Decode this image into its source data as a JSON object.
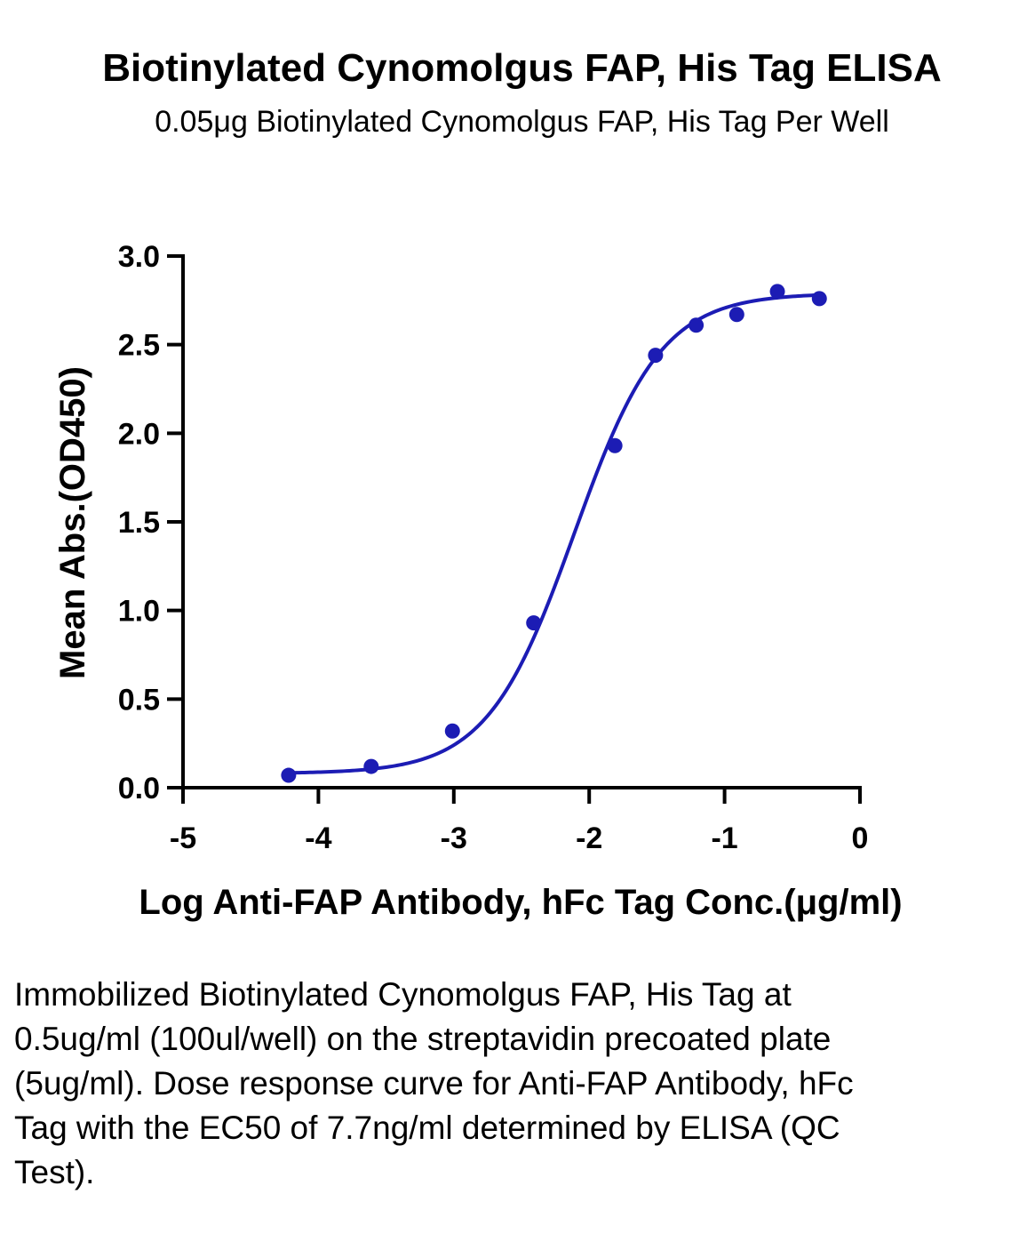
{
  "title": "Biotinylated Cynomolgus FAP, His Tag ELISA",
  "subtitle": "0.05μg Biotinylated Cynomolgus FAP, His Tag Per Well",
  "caption": "Immobilized Biotinylated Cynomolgus FAP, His Tag at 0.5ug/ml (100ul/well) on the streptavidin precoated plate (5ug/ml). Dose response curve for Anti-FAP Antibody, hFc Tag with the EC50 of 7.7ng/ml determined by ELISA (QC Test).",
  "chart_data": {
    "type": "scatter",
    "title": "Biotinylated Cynomolgus FAP, His Tag ELISA",
    "xlabel": "Log Anti-FAP Antibody, hFc Tag Conc.(μg/ml)",
    "ylabel": "Mean Abs.(OD450)",
    "xlim": [
      -5,
      0
    ],
    "ylim": [
      0,
      3.0
    ],
    "x_ticks": [
      -5,
      -4,
      -3,
      -2,
      -1,
      0
    ],
    "x_tick_labels": [
      "-5",
      "-4",
      "-3",
      "-2",
      "-1",
      "0"
    ],
    "y_ticks": [
      0,
      0.5,
      1.0,
      1.5,
      2.0,
      2.5,
      3.0
    ],
    "y_tick_labels": [
      "0.0",
      "0.5",
      "1.0",
      "1.5",
      "2.0",
      "2.5",
      "3.0"
    ],
    "grid": false,
    "series": [
      {
        "color": "#1c1cb4",
        "x": [
          -4.22,
          -3.61,
          -3.01,
          -2.41,
          -1.81,
          -1.51,
          -1.21,
          -0.91,
          -0.61,
          -0.3
        ],
        "y": [
          0.07,
          0.12,
          0.32,
          0.93,
          1.93,
          2.44,
          2.61,
          2.67,
          2.8,
          2.76
        ],
        "fit": {
          "model": "4PL",
          "bottom": 0.08,
          "top": 2.79,
          "logEC50": -2.11,
          "hill": 1.35,
          "x_range": [
            -4.22,
            -0.3
          ]
        }
      }
    ]
  }
}
